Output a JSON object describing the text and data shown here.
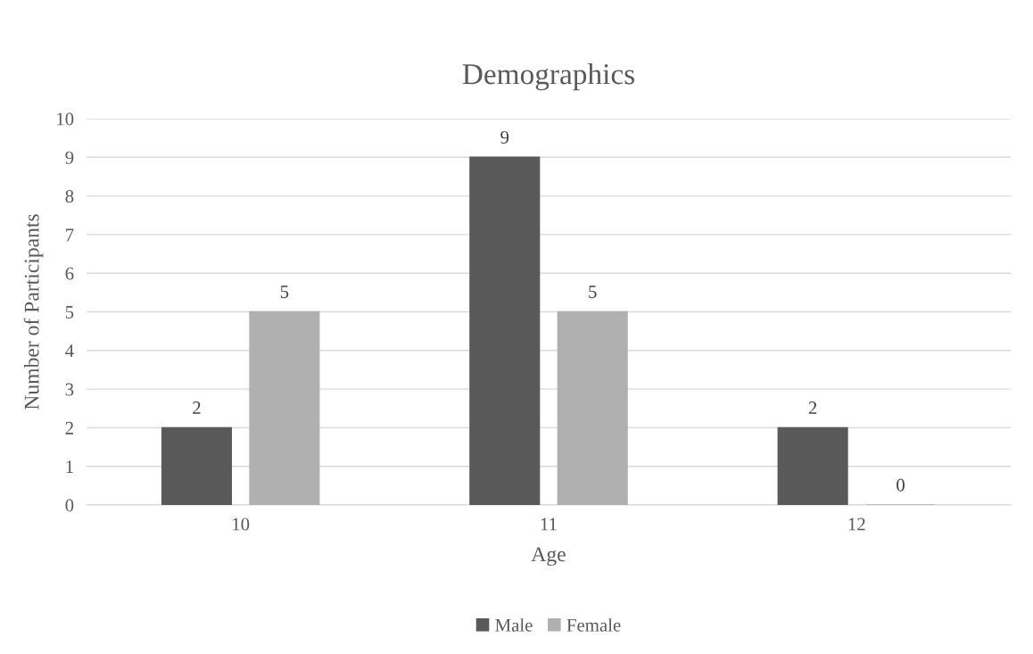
{
  "chart_data": {
    "type": "bar",
    "title": "Demographics",
    "xlabel": "Age",
    "ylabel": "Number of Participants",
    "categories": [
      "10",
      "11",
      "12"
    ],
    "series": [
      {
        "name": "Male",
        "color": "#595959",
        "values": [
          2,
          9,
          2
        ]
      },
      {
        "name": "Female",
        "color": "#b0b0b0",
        "values": [
          5,
          5,
          0
        ]
      }
    ],
    "ylim": [
      0,
      10
    ],
    "yticks": [
      0,
      1,
      2,
      3,
      4,
      5,
      6,
      7,
      8,
      9,
      10
    ],
    "grid": "y",
    "legend": "bottom",
    "data_labels": true
  }
}
